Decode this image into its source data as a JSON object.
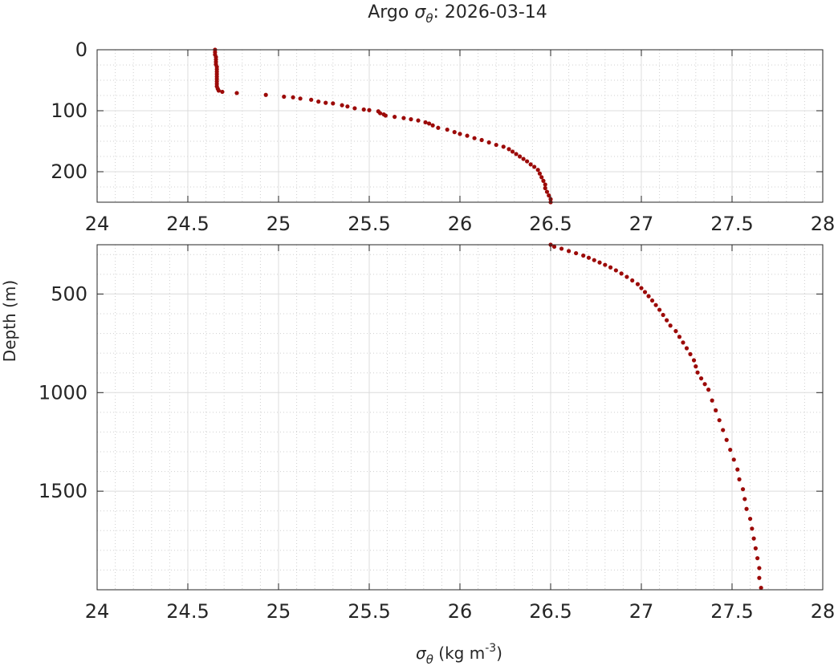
{
  "chart_data": {
    "type": "scatter",
    "title_prefix": "Argo ",
    "title_symbol": "σ",
    "title_subscript": "θ",
    "title_suffix": ": 2026-03-14",
    "xlabel": {
      "symbol": "σ",
      "subscript": "θ",
      "units_prefix": " (kg m",
      "units_superscript": "-3",
      "units_suffix": ")"
    },
    "ylabel": "Depth (m)",
    "y_reversed": true,
    "grid": true,
    "minor_grid": true,
    "marker_color": "#9c0a08",
    "xlim": [
      24,
      28
    ],
    "x_ticks": [
      "24",
      "24.5",
      "25",
      "25.5",
      "26",
      "26.5",
      "27",
      "27.5",
      "28"
    ],
    "panels": [
      {
        "name": "upper",
        "ylim": [
          0,
          250
        ],
        "y_ticks": [
          0,
          100,
          200
        ]
      },
      {
        "name": "lower",
        "ylim": [
          250,
          2000
        ],
        "y_ticks": [
          500,
          1000,
          1500
        ]
      }
    ],
    "series": [
      {
        "points": [
          [
            24.65,
            0
          ],
          [
            24.65,
            4
          ],
          [
            24.65,
            8
          ],
          [
            24.655,
            12
          ],
          [
            24.655,
            16
          ],
          [
            24.655,
            20
          ],
          [
            24.655,
            24
          ],
          [
            24.66,
            28
          ],
          [
            24.66,
            32
          ],
          [
            24.66,
            36
          ],
          [
            24.66,
            40
          ],
          [
            24.66,
            44
          ],
          [
            24.66,
            48
          ],
          [
            24.66,
            52
          ],
          [
            24.66,
            56
          ],
          [
            24.66,
            60
          ],
          [
            24.665,
            64
          ],
          [
            24.67,
            67
          ],
          [
            24.69,
            69
          ],
          [
            24.77,
            71
          ],
          [
            24.93,
            74
          ],
          [
            25.03,
            77
          ],
          [
            25.08,
            78
          ],
          [
            25.12,
            80
          ],
          [
            25.18,
            82
          ],
          [
            25.22,
            85
          ],
          [
            25.26,
            87
          ],
          [
            25.3,
            88
          ],
          [
            25.35,
            91
          ],
          [
            25.38,
            93
          ],
          [
            25.42,
            96
          ],
          [
            25.47,
            98
          ],
          [
            25.5,
            99
          ],
          [
            25.55,
            101
          ],
          [
            25.56,
            104
          ],
          [
            25.58,
            106
          ],
          [
            25.59,
            108
          ],
          [
            25.64,
            110
          ],
          [
            25.69,
            112
          ],
          [
            25.73,
            114
          ],
          [
            25.77,
            116
          ],
          [
            25.81,
            119
          ],
          [
            25.83,
            121
          ],
          [
            25.85,
            124
          ],
          [
            25.88,
            128
          ],
          [
            25.93,
            131
          ],
          [
            25.97,
            135
          ],
          [
            26.0,
            138
          ],
          [
            26.04,
            141
          ],
          [
            26.08,
            145
          ],
          [
            26.12,
            148
          ],
          [
            26.16,
            152
          ],
          [
            26.2,
            156
          ],
          [
            26.24,
            159
          ],
          [
            26.27,
            163
          ],
          [
            26.29,
            167
          ],
          [
            26.31,
            171
          ],
          [
            26.33,
            175
          ],
          [
            26.35,
            179
          ],
          [
            26.37,
            183
          ],
          [
            26.39,
            188
          ],
          [
            26.41,
            192
          ],
          [
            26.43,
            197
          ],
          [
            26.44,
            203
          ],
          [
            26.45,
            209
          ],
          [
            26.46,
            215
          ],
          [
            26.47,
            221
          ],
          [
            26.47,
            227
          ],
          [
            26.48,
            233
          ],
          [
            26.49,
            239
          ],
          [
            26.5,
            245
          ],
          [
            26.5,
            250
          ],
          [
            26.52,
            260
          ],
          [
            26.56,
            270
          ],
          [
            26.6,
            282
          ],
          [
            26.64,
            293
          ],
          [
            26.68,
            305
          ],
          [
            26.71,
            316
          ],
          [
            26.74,
            328
          ],
          [
            26.77,
            340
          ],
          [
            26.8,
            352
          ],
          [
            26.83,
            365
          ],
          [
            26.86,
            380
          ],
          [
            26.89,
            396
          ],
          [
            26.92,
            413
          ],
          [
            26.95,
            431
          ],
          [
            26.98,
            450
          ],
          [
            27.0,
            470
          ],
          [
            27.02,
            490
          ],
          [
            27.04,
            511
          ],
          [
            27.06,
            533
          ],
          [
            27.08,
            556
          ],
          [
            27.1,
            580
          ],
          [
            27.12,
            606
          ],
          [
            27.14,
            633
          ],
          [
            27.16,
            660
          ],
          [
            27.19,
            688
          ],
          [
            27.21,
            717
          ],
          [
            27.23,
            746
          ],
          [
            27.25,
            775
          ],
          [
            27.27,
            805
          ],
          [
            27.29,
            836
          ],
          [
            27.3,
            867
          ],
          [
            27.31,
            898
          ],
          [
            27.33,
            928
          ],
          [
            27.35,
            957
          ],
          [
            27.37,
            985
          ],
          [
            27.39,
            1040
          ],
          [
            27.41,
            1090
          ],
          [
            27.43,
            1140
          ],
          [
            27.45,
            1190
          ],
          [
            27.47,
            1240
          ],
          [
            27.49,
            1290
          ],
          [
            27.51,
            1340
          ],
          [
            27.53,
            1390
          ],
          [
            27.54,
            1440
          ],
          [
            27.56,
            1490
          ],
          [
            27.57,
            1540
          ],
          [
            27.58,
            1590
          ],
          [
            27.6,
            1640
          ],
          [
            27.61,
            1690
          ],
          [
            27.62,
            1740
          ],
          [
            27.63,
            1790
          ],
          [
            27.64,
            1840
          ],
          [
            27.65,
            1890
          ],
          [
            27.65,
            1940
          ],
          [
            27.66,
            1990
          ]
        ]
      }
    ]
  }
}
